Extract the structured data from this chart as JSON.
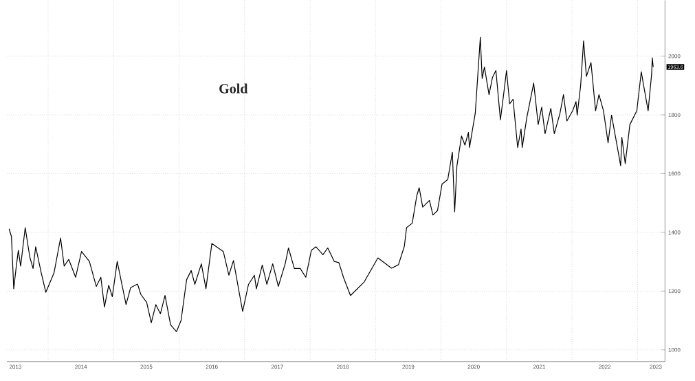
{
  "chart_data": {
    "type": "line",
    "title": "Gold",
    "color": "#000000",
    "line_style": "solid",
    "grid": true,
    "x": [
      2013.405,
      2013.44,
      2013.475,
      2013.51,
      2013.545,
      2013.58,
      2013.65,
      2013.72,
      2013.77,
      2013.81,
      2013.895,
      2013.965,
      2014.09,
      2014.19,
      2014.245,
      2014.315,
      2014.42,
      2014.51,
      2014.63,
      2014.735,
      2014.805,
      2014.86,
      2014.925,
      2014.98,
      2015.055,
      2015.19,
      2015.26,
      2015.365,
      2015.415,
      2015.505,
      2015.575,
      2015.645,
      2015.715,
      2015.785,
      2015.87,
      2015.96,
      2016.03,
      2016.115,
      2016.185,
      2016.24,
      2016.34,
      2016.41,
      2016.5,
      2016.57,
      2016.675,
      2016.76,
      2016.83,
      2016.97,
      2017.06,
      2017.15,
      2017.18,
      2017.27,
      2017.34,
      2017.43,
      2017.515,
      2017.62,
      2017.67,
      2017.76,
      2017.85,
      2017.935,
      2018.02,
      2018.09,
      2018.197,
      2018.27,
      2018.37,
      2018.44,
      2018.51,
      2018.617,
      2018.826,
      2019.036,
      2019.245,
      2019.35,
      2019.44,
      2019.474,
      2019.56,
      2019.63,
      2019.666,
      2019.72,
      2019.823,
      2019.876,
      2019.946,
      2020.015,
      2020.103,
      2020.173,
      2020.208,
      2020.243,
      2020.313,
      2020.365,
      2020.418,
      2020.435,
      2020.523,
      2020.6,
      2020.628,
      2020.663,
      2020.733,
      2020.785,
      2020.838,
      2020.907,
      2020.96,
      2021.0,
      2021.048,
      2021.1,
      2021.17,
      2021.222,
      2021.24,
      2021.31,
      2021.415,
      2021.484,
      2021.537,
      2021.589,
      2021.677,
      2021.73,
      2021.817,
      2021.87,
      2021.922,
      2022.01,
      2022.061,
      2022.079,
      2022.132,
      2022.177,
      2022.22,
      2022.29,
      2022.36,
      2022.412,
      2022.481,
      2022.551,
      2022.604,
      2022.674,
      2022.743,
      2022.761,
      2022.813,
      2022.884,
      2022.99,
      2023.058,
      2023.094,
      2023.163,
      2023.216,
      2023.226,
      2023.24
    ],
    "values": [
      1412,
      1385,
      1208,
      1277,
      1339,
      1285,
      1416,
      1316,
      1277,
      1351,
      1262,
      1196,
      1262,
      1381,
      1285,
      1308,
      1247,
      1335,
      1301,
      1216,
      1247,
      1146,
      1220,
      1181,
      1301,
      1154,
      1212,
      1224,
      1189,
      1162,
      1092,
      1154,
      1123,
      1185,
      1085,
      1062,
      1100,
      1239,
      1270,
      1223,
      1293,
      1208,
      1362,
      1351,
      1335,
      1254,
      1304,
      1131,
      1223,
      1254,
      1208,
      1289,
      1223,
      1293,
      1216,
      1293,
      1347,
      1277,
      1277,
      1247,
      1339,
      1351,
      1324,
      1347,
      1301,
      1297,
      1247,
      1185,
      1231,
      1313,
      1278,
      1290,
      1353,
      1416,
      1431,
      1525,
      1552,
      1486,
      1509,
      1459,
      1474,
      1564,
      1580,
      1673,
      1470,
      1627,
      1728,
      1697,
      1740,
      1689,
      1806,
      2064,
      1924,
      1963,
      1869,
      1927,
      1951,
      1783,
      1877,
      1951,
      1838,
      1853,
      1689,
      1752,
      1689,
      1791,
      1908,
      1767,
      1826,
      1736,
      1822,
      1736,
      1806,
      1869,
      1779,
      1814,
      1845,
      1799,
      1900,
      2052,
      1931,
      1978,
      1814,
      1869,
      1814,
      1705,
      1799,
      1713,
      1627,
      1724,
      1634,
      1767,
      1814,
      1947,
      1900,
      1814,
      1939,
      1994,
      1963
    ],
    "xlim": [
      2013.37,
      2023.42
    ],
    "ylim": [
      960,
      2190
    ],
    "xticks": [
      {
        "value": 2014,
        "label": null
      },
      {
        "value": 2015,
        "label": null
      },
      {
        "value": 2016,
        "label": null
      },
      {
        "value": 2017,
        "label": null
      },
      {
        "value": 2018,
        "label": null
      },
      {
        "value": 2019,
        "label": null
      },
      {
        "value": 2020,
        "label": null
      },
      {
        "value": 2021,
        "label": null
      },
      {
        "value": 2022,
        "label": null
      },
      {
        "value": 2023,
        "label": null
      },
      {
        "value": 2013.5,
        "label": "2013"
      },
      {
        "value": 2014.5,
        "label": "2014"
      },
      {
        "value": 2015.5,
        "label": "2015"
      },
      {
        "value": 2016.5,
        "label": "2016"
      },
      {
        "value": 2017.5,
        "label": "2017"
      },
      {
        "value": 2018.5,
        "label": "2018"
      },
      {
        "value": 2019.5,
        "label": "2019"
      },
      {
        "value": 2020.5,
        "label": "2020"
      },
      {
        "value": 2021.5,
        "label": "2021"
      },
      {
        "value": 2022.5,
        "label": "2022"
      },
      {
        "value": 2023.28,
        "label": "2023"
      }
    ],
    "yticks": [
      1000,
      1200,
      1400,
      1600,
      1800,
      2000
    ],
    "annotations": [
      {
        "text": "1963.6",
        "x": 2023.24,
        "y": 1963
      }
    ]
  }
}
